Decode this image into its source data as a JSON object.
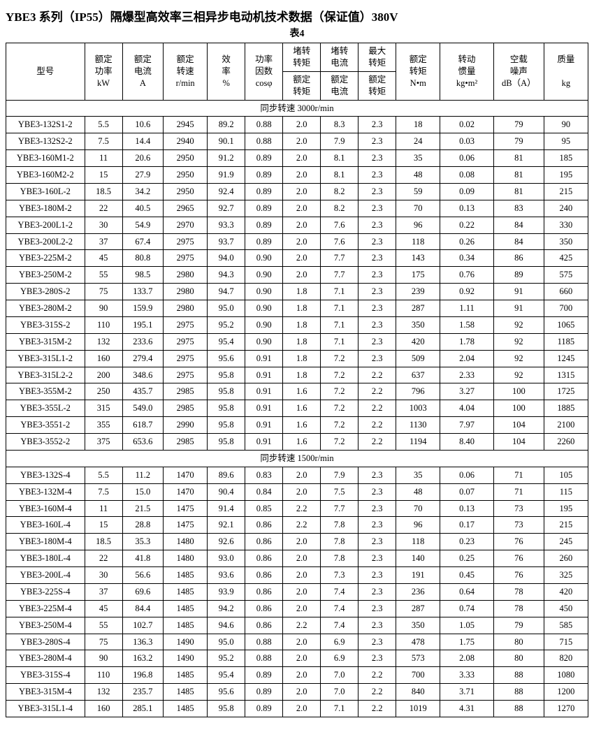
{
  "title": "YBE3 系列（IP55）隔爆型高效率三相异步电动机技术数据（保证值）380V",
  "subtitle": "表4",
  "columns": {
    "model": "型号",
    "power": {
      "l1": "额定",
      "l2": "功率",
      "l3": "kW"
    },
    "current": {
      "l1": "额定",
      "l2": "电流",
      "l3": "A"
    },
    "speed": {
      "l1": "额定",
      "l2": "转速",
      "l3": "r/min"
    },
    "eff": {
      "l1": "效",
      "l2": "率",
      "l3": "%"
    },
    "pf": {
      "l1": "功率",
      "l2": "因数",
      "l3": "cosφ"
    },
    "lrt": {
      "top": "堵转\n转矩",
      "bot": "额定\n转矩"
    },
    "lrc": {
      "top": "堵转\n电流",
      "bot": "额定\n电流"
    },
    "maxt": {
      "top": "最大\n转矩",
      "bot": "额定\n转矩"
    },
    "torque": {
      "l1": "额定",
      "l2": "转矩",
      "l3": "N•m"
    },
    "inertia": {
      "l1": "转动",
      "l2": "惯量",
      "l3": "kg•m²"
    },
    "noise": {
      "l1": "空载",
      "l2": "噪声",
      "l3": "dB（A）"
    },
    "mass": {
      "l1": "质量",
      "l2": "kg"
    }
  },
  "sections": [
    {
      "title": "同步转速 3000r/min",
      "rows": [
        [
          "YBE3-132S1-2",
          "5.5",
          "10.6",
          "2945",
          "89.2",
          "0.88",
          "2.0",
          "8.3",
          "2.3",
          "18",
          "0.02",
          "79",
          "90"
        ],
        [
          "YBE3-132S2-2",
          "7.5",
          "14.4",
          "2940",
          "90.1",
          "0.88",
          "2.0",
          "7.9",
          "2.3",
          "24",
          "0.03",
          "79",
          "95"
        ],
        [
          "YBE3-160M1-2",
          "11",
          "20.6",
          "2950",
          "91.2",
          "0.89",
          "2.0",
          "8.1",
          "2.3",
          "35",
          "0.06",
          "81",
          "185"
        ],
        [
          "YBE3-160M2-2",
          "15",
          "27.9",
          "2950",
          "91.9",
          "0.89",
          "2.0",
          "8.1",
          "2.3",
          "48",
          "0.08",
          "81",
          "195"
        ],
        [
          "YBE3-160L-2",
          "18.5",
          "34.2",
          "2950",
          "92.4",
          "0.89",
          "2.0",
          "8.2",
          "2.3",
          "59",
          "0.09",
          "81",
          "215"
        ],
        [
          "YBE3-180M-2",
          "22",
          "40.5",
          "2965",
          "92.7",
          "0.89",
          "2.0",
          "8.2",
          "2.3",
          "70",
          "0.13",
          "83",
          "240"
        ],
        [
          "YBE3-200L1-2",
          "30",
          "54.9",
          "2970",
          "93.3",
          "0.89",
          "2.0",
          "7.6",
          "2.3",
          "96",
          "0.22",
          "84",
          "330"
        ],
        [
          "YBE3-200L2-2",
          "37",
          "67.4",
          "2975",
          "93.7",
          "0.89",
          "2.0",
          "7.6",
          "2.3",
          "118",
          "0.26",
          "84",
          "350"
        ],
        [
          "YBE3-225M-2",
          "45",
          "80.8",
          "2975",
          "94.0",
          "0.90",
          "2.0",
          "7.7",
          "2.3",
          "143",
          "0.34",
          "86",
          "425"
        ],
        [
          "YBE3-250M-2",
          "55",
          "98.5",
          "2980",
          "94.3",
          "0.90",
          "2.0",
          "7.7",
          "2.3",
          "175",
          "0.76",
          "89",
          "575"
        ],
        [
          "YBE3-280S-2",
          "75",
          "133.7",
          "2980",
          "94.7",
          "0.90",
          "1.8",
          "7.1",
          "2.3",
          "239",
          "0.92",
          "91",
          "660"
        ],
        [
          "YBE3-280M-2",
          "90",
          "159.9",
          "2980",
          "95.0",
          "0.90",
          "1.8",
          "7.1",
          "2.3",
          "287",
          "1.11",
          "91",
          "700"
        ],
        [
          "YBE3-315S-2",
          "110",
          "195.1",
          "2975",
          "95.2",
          "0.90",
          "1.8",
          "7.1",
          "2.3",
          "350",
          "1.58",
          "92",
          "1065"
        ],
        [
          "YBE3-315M-2",
          "132",
          "233.6",
          "2975",
          "95.4",
          "0.90",
          "1.8",
          "7.1",
          "2.3",
          "420",
          "1.78",
          "92",
          "1185"
        ],
        [
          "YBE3-315L1-2",
          "160",
          "279.4",
          "2975",
          "95.6",
          "0.91",
          "1.8",
          "7.2",
          "2.3",
          "509",
          "2.04",
          "92",
          "1245"
        ],
        [
          "YBE3-315L2-2",
          "200",
          "348.6",
          "2975",
          "95.8",
          "0.91",
          "1.8",
          "7.2",
          "2.2",
          "637",
          "2.33",
          "92",
          "1315"
        ],
        [
          "YBE3-355M-2",
          "250",
          "435.7",
          "2985",
          "95.8",
          "0.91",
          "1.6",
          "7.2",
          "2.2",
          "796",
          "3.27",
          "100",
          "1725"
        ],
        [
          "YBE3-355L-2",
          "315",
          "549.0",
          "2985",
          "95.8",
          "0.91",
          "1.6",
          "7.2",
          "2.2",
          "1003",
          "4.04",
          "100",
          "1885"
        ],
        [
          "YBE3-3551-2",
          "355",
          "618.7",
          "2990",
          "95.8",
          "0.91",
          "1.6",
          "7.2",
          "2.2",
          "1130",
          "7.97",
          "104",
          "2100"
        ],
        [
          "YBE3-3552-2",
          "375",
          "653.6",
          "2985",
          "95.8",
          "0.91",
          "1.6",
          "7.2",
          "2.2",
          "1194",
          "8.40",
          "104",
          "2260"
        ]
      ]
    },
    {
      "title": "同步转速 1500r/min",
      "rows": [
        [
          "YBE3-132S-4",
          "5.5",
          "11.2",
          "1470",
          "89.6",
          "0.83",
          "2.0",
          "7.9",
          "2.3",
          "35",
          "0.06",
          "71",
          "105"
        ],
        [
          "YBE3-132M-4",
          "7.5",
          "15.0",
          "1470",
          "90.4",
          "0.84",
          "2.0",
          "7.5",
          "2.3",
          "48",
          "0.07",
          "71",
          "115"
        ],
        [
          "YBE3-160M-4",
          "11",
          "21.5",
          "1475",
          "91.4",
          "0.85",
          "2.2",
          "7.7",
          "2.3",
          "70",
          "0.13",
          "73",
          "195"
        ],
        [
          "YBE3-160L-4",
          "15",
          "28.8",
          "1475",
          "92.1",
          "0.86",
          "2.2",
          "7.8",
          "2.3",
          "96",
          "0.17",
          "73",
          "215"
        ],
        [
          "YBE3-180M-4",
          "18.5",
          "35.3",
          "1480",
          "92.6",
          "0.86",
          "2.0",
          "7.8",
          "2.3",
          "118",
          "0.23",
          "76",
          "245"
        ],
        [
          "YBE3-180L-4",
          "22",
          "41.8",
          "1480",
          "93.0",
          "0.86",
          "2.0",
          "7.8",
          "2.3",
          "140",
          "0.25",
          "76",
          "260"
        ],
        [
          "YBE3-200L-4",
          "30",
          "56.6",
          "1485",
          "93.6",
          "0.86",
          "2.0",
          "7.3",
          "2.3",
          "191",
          "0.45",
          "76",
          "325"
        ],
        [
          "YBE3-225S-4",
          "37",
          "69.6",
          "1485",
          "93.9",
          "0.86",
          "2.0",
          "7.4",
          "2.3",
          "236",
          "0.64",
          "78",
          "420"
        ],
        [
          "YBE3-225M-4",
          "45",
          "84.4",
          "1485",
          "94.2",
          "0.86",
          "2.0",
          "7.4",
          "2.3",
          "287",
          "0.74",
          "78",
          "450"
        ],
        [
          "YBE3-250M-4",
          "55",
          "102.7",
          "1485",
          "94.6",
          "0.86",
          "2.2",
          "7.4",
          "2.3",
          "350",
          "1.05",
          "79",
          "585"
        ],
        [
          "YBE3-280S-4",
          "75",
          "136.3",
          "1490",
          "95.0",
          "0.88",
          "2.0",
          "6.9",
          "2.3",
          "478",
          "1.75",
          "80",
          "715"
        ],
        [
          "YBE3-280M-4",
          "90",
          "163.2",
          "1490",
          "95.2",
          "0.88",
          "2.0",
          "6.9",
          "2.3",
          "573",
          "2.08",
          "80",
          "820"
        ],
        [
          "YBE3-315S-4",
          "110",
          "196.8",
          "1485",
          "95.4",
          "0.89",
          "2.0",
          "7.0",
          "2.2",
          "700",
          "3.33",
          "88",
          "1080"
        ],
        [
          "YBE3-315M-4",
          "132",
          "235.7",
          "1485",
          "95.6",
          "0.89",
          "2.0",
          "7.0",
          "2.2",
          "840",
          "3.71",
          "88",
          "1200"
        ],
        [
          "YBE3-315L1-4",
          "160",
          "285.1",
          "1485",
          "95.8",
          "0.89",
          "2.0",
          "7.1",
          "2.2",
          "1019",
          "4.31",
          "88",
          "1270"
        ]
      ]
    }
  ]
}
